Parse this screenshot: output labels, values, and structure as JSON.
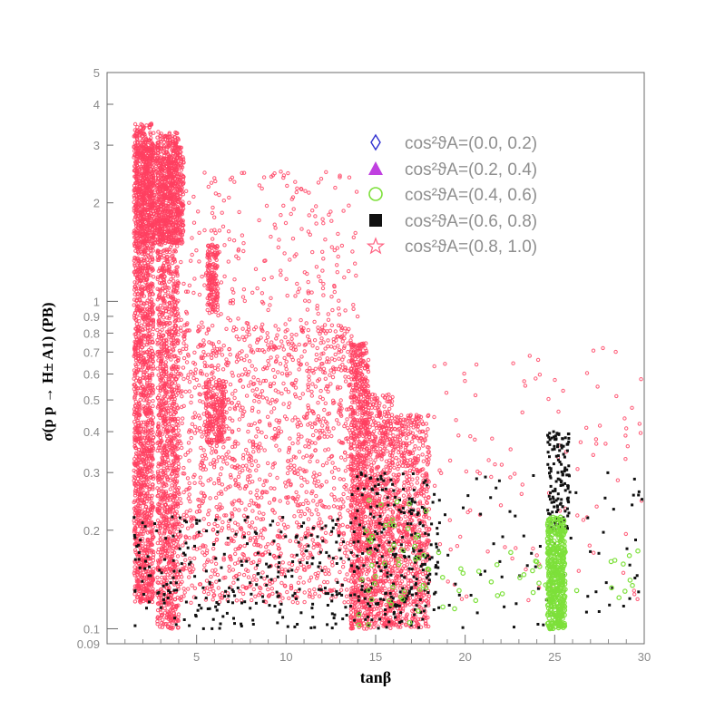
{
  "chart_data": {
    "type": "scatter",
    "title": "",
    "xlabel": "tanβ",
    "ylabel": "σ(p p → H± A1) (PB)",
    "xlim": [
      0,
      30
    ],
    "ylim": [
      0.09,
      5
    ],
    "yscale": "log",
    "xticks": [
      5,
      10,
      15,
      20,
      25,
      30
    ],
    "yticks": [
      {
        "value": 0.09,
        "label": "0.09"
      },
      {
        "value": 0.1,
        "label": "0.1"
      },
      {
        "value": 0.2,
        "label": "0.2"
      },
      {
        "value": 0.3,
        "label": "0.3"
      },
      {
        "value": 0.4,
        "label": "0.4"
      },
      {
        "value": 0.5,
        "label": "0.5"
      },
      {
        "value": 0.6,
        "label": "0.6"
      },
      {
        "value": 0.7,
        "label": "0.7"
      },
      {
        "value": 0.8,
        "label": "0.8"
      },
      {
        "value": 0.9,
        "label": "0.9"
      },
      {
        "value": 1,
        "label": "1"
      },
      {
        "value": 2,
        "label": "2"
      },
      {
        "value": 3,
        "label": "3"
      },
      {
        "value": 4,
        "label": "4"
      },
      {
        "value": 5,
        "label": "5"
      }
    ],
    "legend_position": "top-right",
    "grid": false,
    "series": [
      {
        "name": "cos²ϑA=(0.0, 0.2)",
        "marker": "diamond-open",
        "color": "#3030d0",
        "clusters": []
      },
      {
        "name": "cos²ϑA=(0.2, 0.4)",
        "marker": "triangle-filled",
        "color": "#c040e0",
        "clusters": []
      },
      {
        "name": "cos²ϑA=(0.4, 0.6)",
        "marker": "circle-open",
        "color": "#7de03a",
        "clusters": [
          {
            "x": [
              24.6,
              25.6
            ],
            "y": [
              0.1,
              0.22
            ],
            "n": 420
          },
          {
            "x": [
              14.0,
              18.0
            ],
            "y": [
              0.1,
              0.25
            ],
            "n": 50
          },
          {
            "x": [
              18.0,
              30.0
            ],
            "y": [
              0.11,
              0.18
            ],
            "n": 35
          }
        ]
      },
      {
        "name": "cos²ϑA=(0.6, 0.8)",
        "marker": "square-filled",
        "color": "#111111",
        "clusters": [
          {
            "x": [
              24.6,
              25.9
            ],
            "y": [
              0.2,
              0.4
            ],
            "n": 140
          },
          {
            "x": [
              13.6,
              18.6
            ],
            "y": [
              0.1,
              0.3
            ],
            "n": 260
          },
          {
            "x": [
              1.5,
              13.6
            ],
            "y": [
              0.1,
              0.22
            ],
            "n": 260
          },
          {
            "x": [
              18.0,
              30.0
            ],
            "y": [
              0.1,
              0.3
            ],
            "n": 80
          }
        ]
      },
      {
        "name": "cos²ϑA=(0.8, 1.0)",
        "marker": "star-open",
        "color": "#ff4060",
        "clusters": [
          {
            "x": [
              1.5,
              2.6
            ],
            "y": [
              0.12,
              3.5
            ],
            "n": 1700
          },
          {
            "x": [
              2.8,
              4.0
            ],
            "y": [
              0.1,
              3.3
            ],
            "n": 1500
          },
          {
            "x": [
              1.6,
              4.3
            ],
            "y": [
              1.5,
              3.0
            ],
            "n": 900
          },
          {
            "x": [
              5.6,
              6.2
            ],
            "y": [
              0.92,
              1.5
            ],
            "n": 160
          },
          {
            "x": [
              5.5,
              6.6
            ],
            "y": [
              0.37,
              0.58
            ],
            "n": 220
          },
          {
            "x": [
              13.6,
              14.6
            ],
            "y": [
              0.1,
              0.75
            ],
            "n": 900
          },
          {
            "x": [
              14.6,
              16.0
            ],
            "y": [
              0.1,
              0.52
            ],
            "n": 700
          },
          {
            "x": [
              16.0,
              18.0
            ],
            "y": [
              0.1,
              0.45
            ],
            "n": 700
          },
          {
            "x": [
              4.0,
              13.6
            ],
            "y": [
              0.12,
              0.85
            ],
            "n": 1400
          },
          {
            "x": [
              4.0,
              14.0
            ],
            "y": [
              0.6,
              2.5
            ],
            "n": 320
          },
          {
            "x": [
              18.0,
              30.0
            ],
            "y": [
              0.12,
              0.75
            ],
            "n": 110
          }
        ]
      }
    ]
  }
}
